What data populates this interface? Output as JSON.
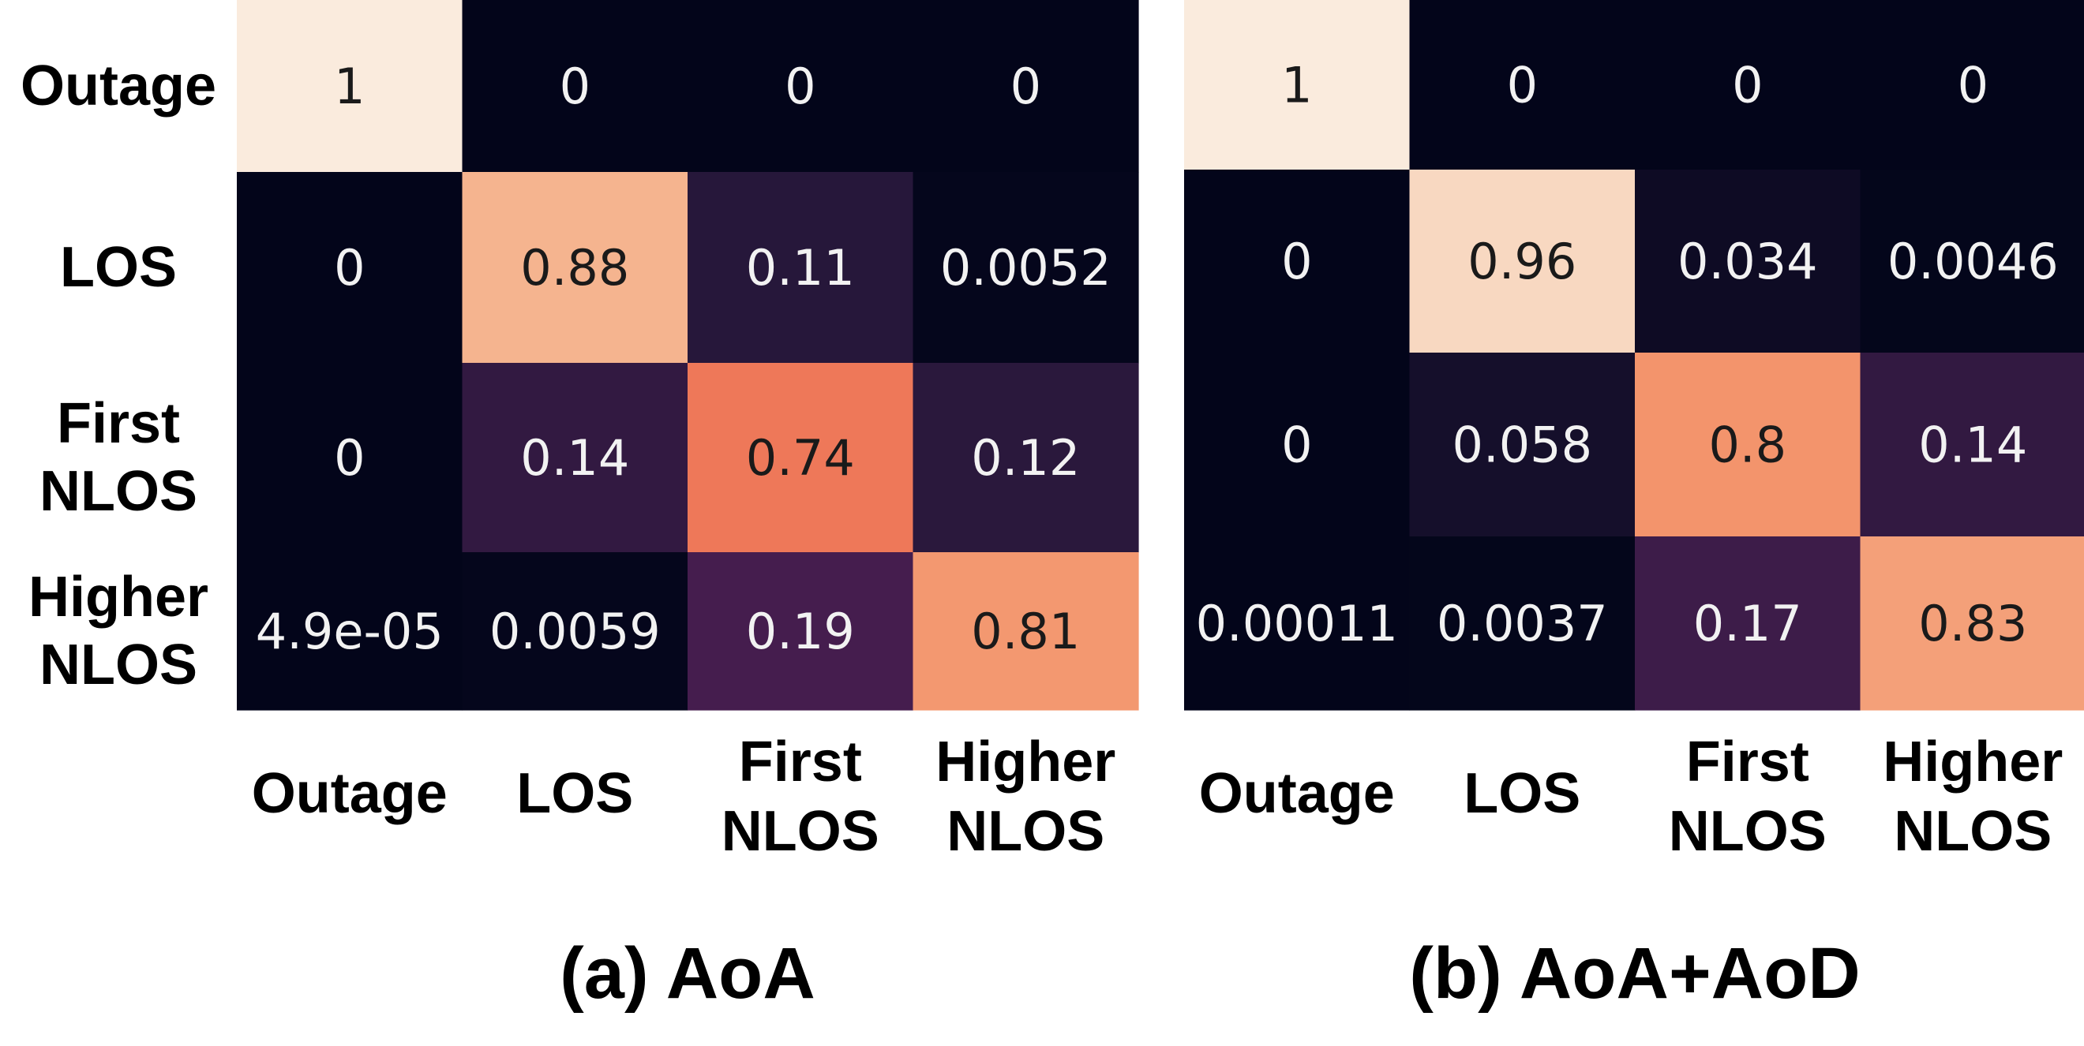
{
  "chart_data": [
    {
      "type": "heatmap",
      "title": "(a) AoA",
      "rows": [
        [
          "Outage"
        ],
        [
          "LOS"
        ],
        [
          "First",
          "NLOS"
        ],
        [
          "Higher",
          "NLOS"
        ]
      ],
      "columns": [
        [
          "Outage"
        ],
        [
          "LOS"
        ],
        [
          "First",
          "NLOS"
        ],
        [
          "Higher",
          "NLOS"
        ]
      ],
      "values": [
        [
          1,
          0,
          0,
          0
        ],
        [
          0,
          0.88,
          0.11,
          0.0052
        ],
        [
          0,
          0.14,
          0.74,
          0.12
        ],
        [
          4.9e-05,
          0.0059,
          0.19,
          0.81
        ]
      ],
      "value_labels": [
        [
          "1",
          "0",
          "0",
          "0"
        ],
        [
          "0",
          "0.88",
          "0.11",
          "0.0052"
        ],
        [
          "0",
          "0.14",
          "0.74",
          "0.12"
        ],
        [
          "4.9e-05",
          "0.0059",
          "0.19",
          "0.81"
        ]
      ],
      "color_range": [
        0,
        1
      ],
      "colormap": "rocket"
    },
    {
      "type": "heatmap",
      "title": "(b) AoA+AoD",
      "rows": [
        [
          "Outage"
        ],
        [
          "LOS"
        ],
        [
          "First",
          "NLOS"
        ],
        [
          "Higher",
          "NLOS"
        ]
      ],
      "columns": [
        [
          "Outage"
        ],
        [
          "LOS"
        ],
        [
          "First",
          "NLOS"
        ],
        [
          "Higher",
          "NLOS"
        ]
      ],
      "values": [
        [
          1,
          0,
          0,
          0
        ],
        [
          0,
          0.96,
          0.034,
          0.0046
        ],
        [
          0,
          0.058,
          0.8,
          0.14
        ],
        [
          0.00011,
          0.0037,
          0.17,
          0.83
        ]
      ],
      "value_labels": [
        [
          "1",
          "0",
          "0",
          "0"
        ],
        [
          "0",
          "0.96",
          "0.034",
          "0.0046"
        ],
        [
          "0",
          "0.058",
          "0.8",
          "0.14"
        ],
        [
          "0.00011",
          "0.0037",
          "0.17",
          "0.83"
        ]
      ],
      "color_range": [
        0,
        1
      ],
      "colormap": "rocket"
    }
  ]
}
